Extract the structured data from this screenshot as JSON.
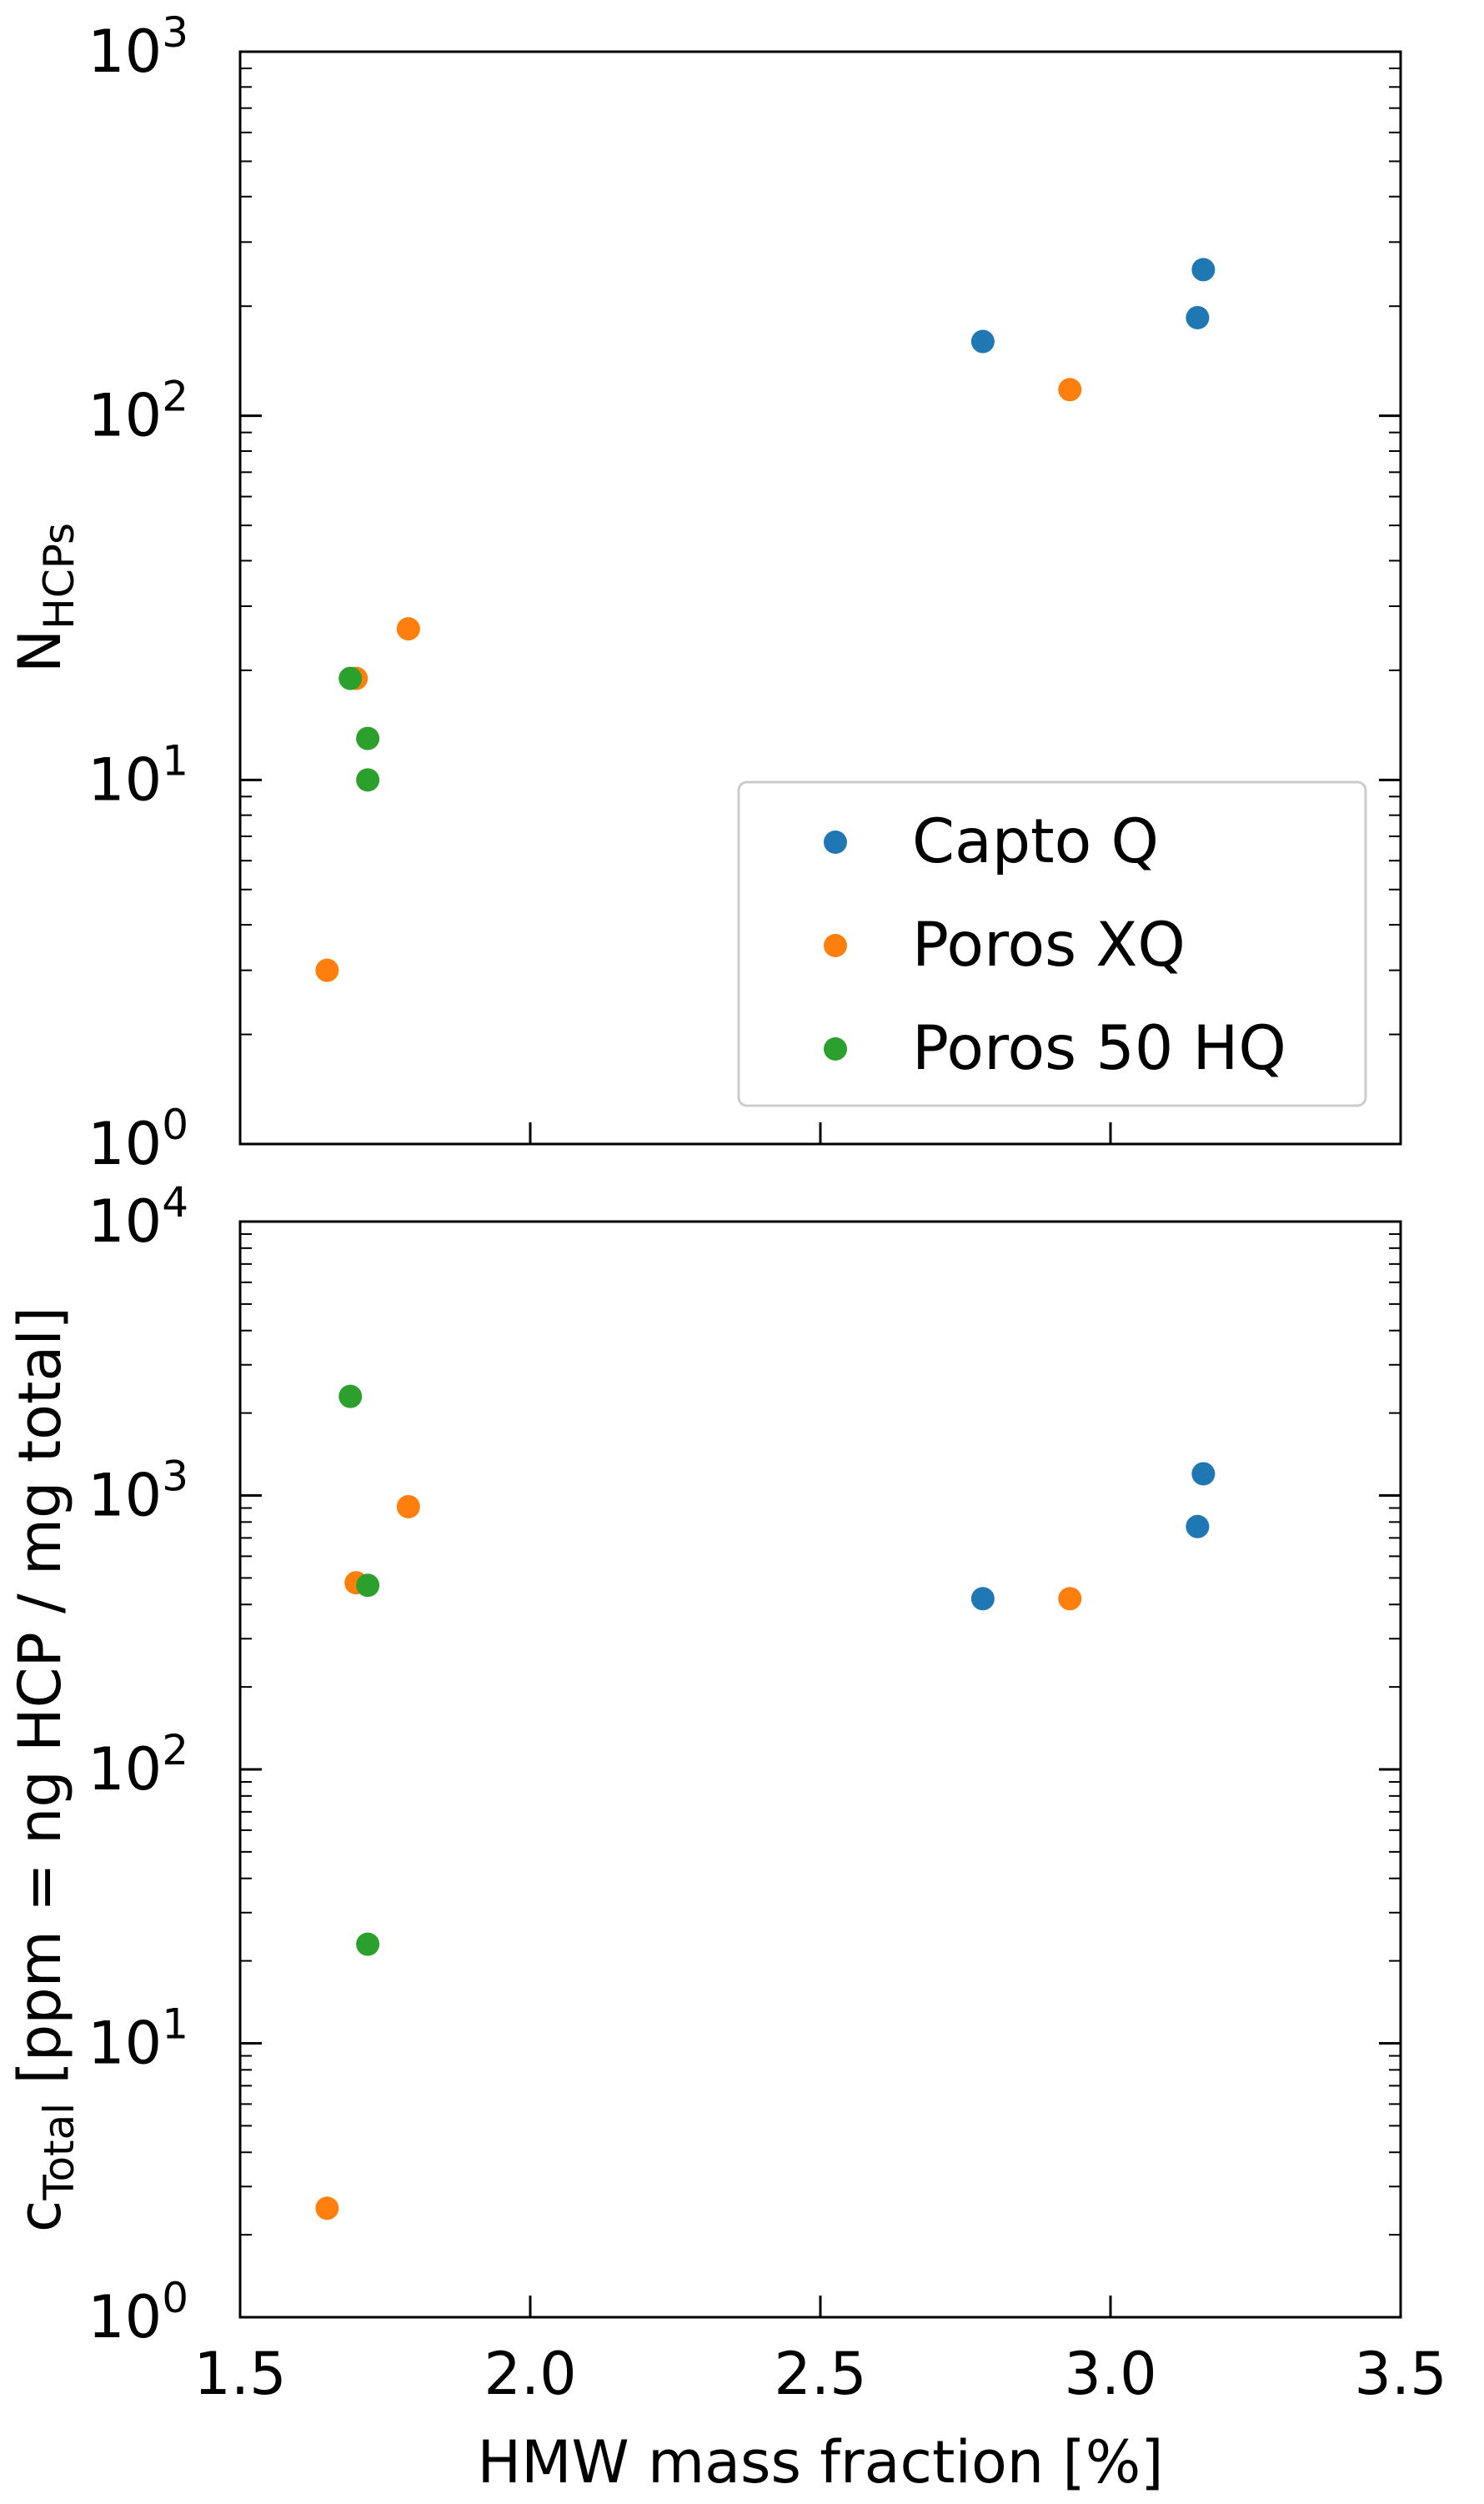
{
  "chart_data": [
    {
      "type": "scatter",
      "title": "",
      "xlabel": "",
      "ylabel_main": "N",
      "ylabel_sub": "HCPs",
      "xlim": [
        1.5,
        3.5
      ],
      "ylim": [
        1,
        1000
      ],
      "yscale": "log",
      "grid": false,
      "x_tick_labels_visible": false,
      "y_ticks": [
        {
          "value": 1,
          "base": "10",
          "exp": "0"
        },
        {
          "value": 10,
          "base": "10",
          "exp": "1"
        },
        {
          "value": 100,
          "base": "10",
          "exp": "2"
        },
        {
          "value": 1000,
          "base": "10",
          "exp": "3"
        }
      ],
      "legend_position": "lower-right",
      "series": [
        {
          "name": "Capto Q",
          "color": "#1f77b4",
          "points": [
            {
              "x": 2.78,
              "y": 160
            },
            {
              "x": 3.15,
              "y": 186
            },
            {
              "x": 3.16,
              "y": 252
            }
          ]
        },
        {
          "name": "Poros XQ",
          "color": "#ff7f0e",
          "points": [
            {
              "x": 1.65,
              "y": 3
            },
            {
              "x": 1.7,
              "y": 19
            },
            {
              "x": 1.79,
              "y": 26
            },
            {
              "x": 2.93,
              "y": 118
            }
          ]
        },
        {
          "name": "Poros 50 HQ",
          "color": "#2ca02c",
          "points": [
            {
              "x": 1.69,
              "y": 19
            },
            {
              "x": 1.72,
              "y": 13
            },
            {
              "x": 1.72,
              "y": 10
            }
          ]
        }
      ]
    },
    {
      "type": "scatter",
      "title": "",
      "xlabel": "HMW mass fraction [%]",
      "ylabel_main": "c",
      "ylabel_sub": "Total",
      "ylabel_rest": "[ppm = ng HCP / mg total]",
      "xlim": [
        1.5,
        3.5
      ],
      "ylim": [
        1,
        10000
      ],
      "yscale": "log",
      "grid": false,
      "x_ticks": [
        {
          "value": 1.5,
          "label": "1.5"
        },
        {
          "value": 2.0,
          "label": "2.0"
        },
        {
          "value": 2.5,
          "label": "2.5"
        },
        {
          "value": 3.0,
          "label": "3.0"
        },
        {
          "value": 3.5,
          "label": "3.5"
        }
      ],
      "y_ticks": [
        {
          "value": 1,
          "base": "10",
          "exp": "0"
        },
        {
          "value": 10,
          "base": "10",
          "exp": "1"
        },
        {
          "value": 100,
          "base": "10",
          "exp": "2"
        },
        {
          "value": 1000,
          "base": "10",
          "exp": "3"
        },
        {
          "value": 10000,
          "base": "10",
          "exp": "4"
        }
      ],
      "series": [
        {
          "name": "Capto Q",
          "color": "#1f77b4",
          "points": [
            {
              "x": 2.78,
              "y": 420
            },
            {
              "x": 3.15,
              "y": 770
            },
            {
              "x": 3.16,
              "y": 1200
            }
          ]
        },
        {
          "name": "Poros XQ",
          "color": "#ff7f0e",
          "points": [
            {
              "x": 1.65,
              "y": 2.5
            },
            {
              "x": 1.7,
              "y": 480
            },
            {
              "x": 1.79,
              "y": 910
            },
            {
              "x": 2.93,
              "y": 420
            }
          ]
        },
        {
          "name": "Poros 50 HQ",
          "color": "#2ca02c",
          "points": [
            {
              "x": 1.69,
              "y": 2300
            },
            {
              "x": 1.72,
              "y": 470
            },
            {
              "x": 1.72,
              "y": 23
            }
          ]
        }
      ]
    }
  ]
}
